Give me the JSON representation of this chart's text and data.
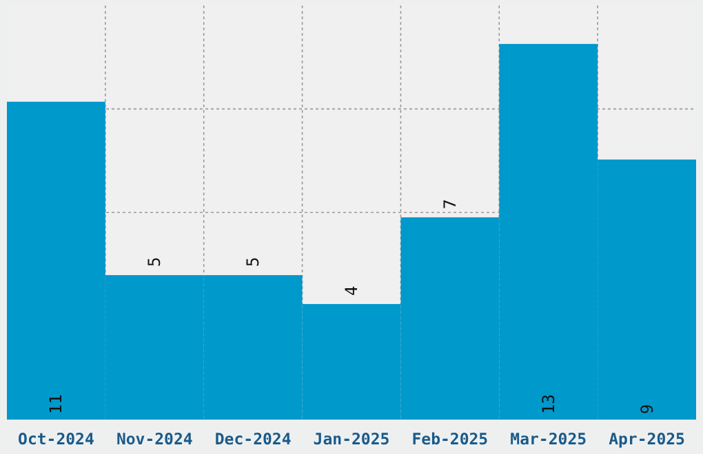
{
  "chart_data": {
    "type": "bar",
    "categories": [
      "Oct-2024",
      "Nov-2024",
      "Dec-2024",
      "Jan-2025",
      "Feb-2025",
      "Mar-2025",
      "Apr-2025"
    ],
    "values": [
      11,
      5,
      5,
      4,
      7,
      13,
      9
    ],
    "color": "#0099cc",
    "ylim": [
      0,
      14.33
    ],
    "yticks": [
      {
        "value": 3.58,
        "label": null
      },
      {
        "value": 7.17,
        "label": null
      },
      {
        "value": 10.75,
        "label": null
      }
    ],
    "grid": true,
    "data_labels": true,
    "tick_labels": "x"
  }
}
